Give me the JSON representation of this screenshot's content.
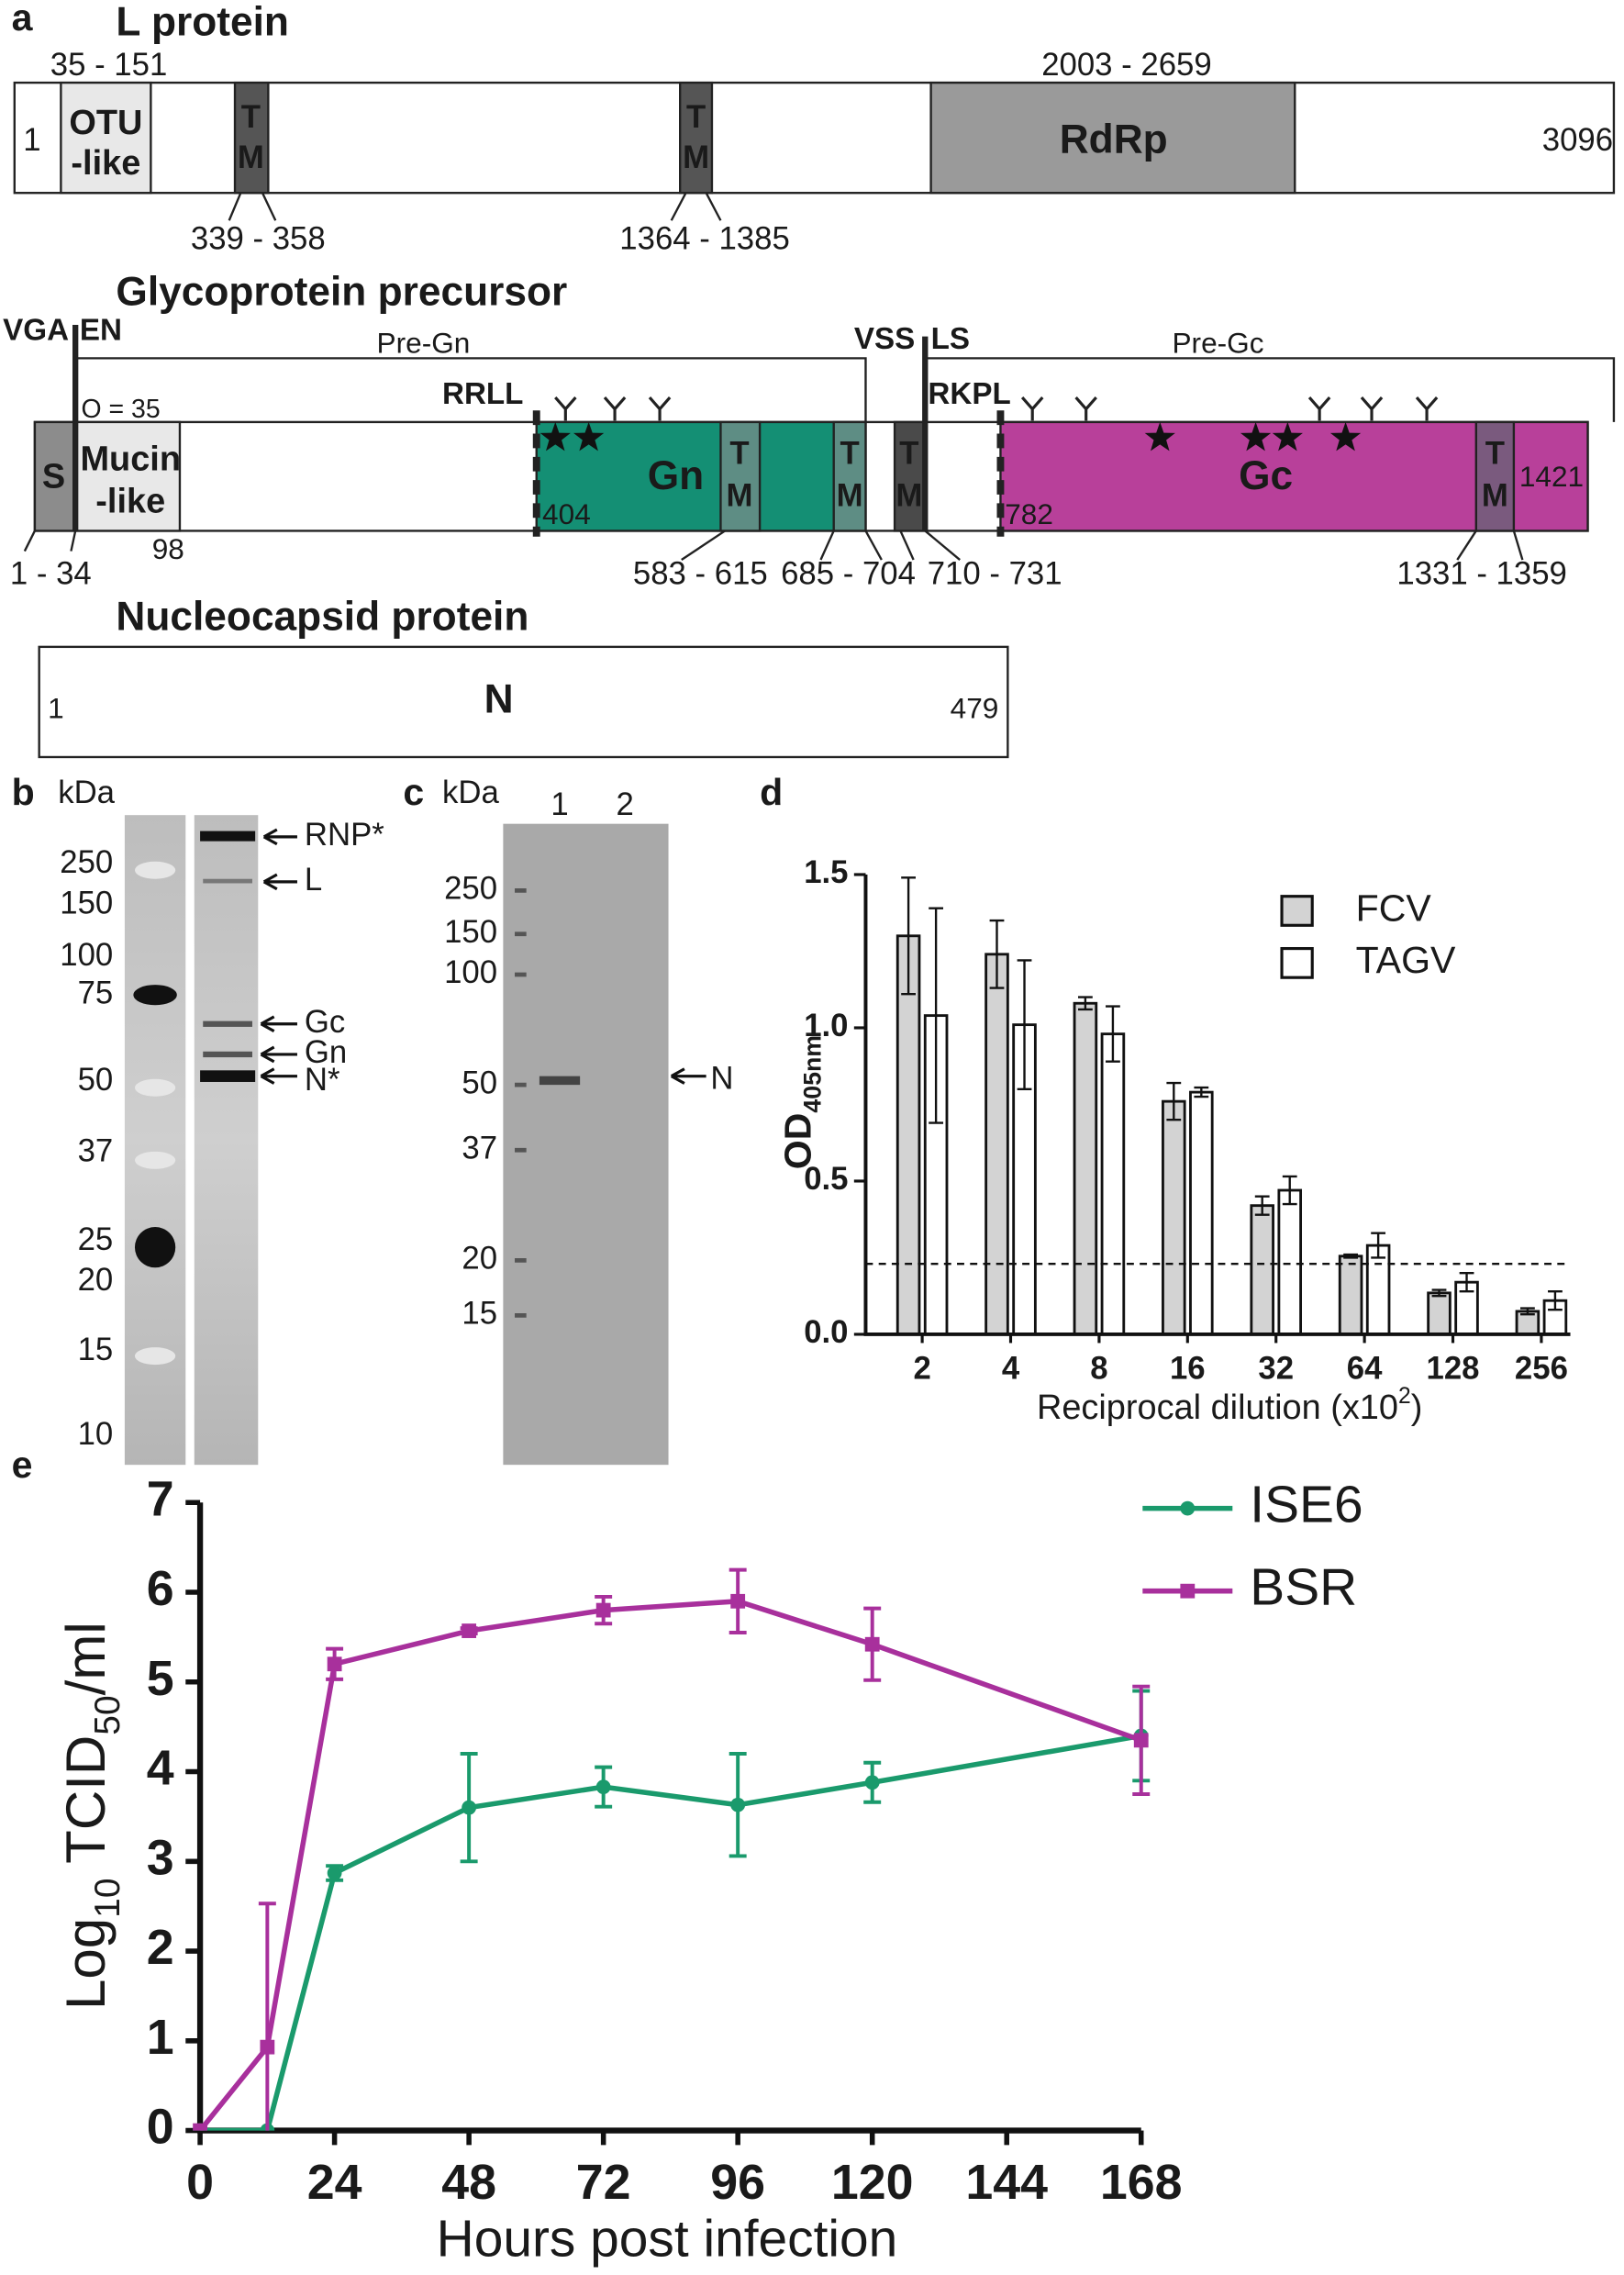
{
  "panel_a": {
    "label": "a",
    "l_protein": {
      "title": "L protein",
      "domain_range": "35 - 151",
      "otu": [
        "OTU",
        "-like"
      ],
      "tm1": [
        "T",
        "M"
      ],
      "tm2": [
        "T",
        "M"
      ],
      "rdrp_range": "2003 - 2659",
      "rdrp": "RdRp",
      "start": "1",
      "end": "3096",
      "tm1_range": "339 - 358",
      "tm2_range": "1364 - 1385"
    },
    "glycoprotein": {
      "title": "Glycoprotein precursor",
      "cleave1": [
        "VGA",
        "EN"
      ],
      "pre_gn": "Pre-Gn",
      "cleave2": [
        "VSS",
        "LS"
      ],
      "pre_gc": "Pre-Gc",
      "o_glyc": "O = 35",
      "rrll": "RRLL",
      "rkpl": "RKPL",
      "signal": "S",
      "mucin": [
        "Mucin",
        "-like"
      ],
      "mucin_end": "98",
      "gn": "Gn",
      "gn_start": "404",
      "tm1": [
        "T",
        "M"
      ],
      "tm2": [
        "T",
        "M"
      ],
      "tm3": [
        "T",
        "M"
      ],
      "gc_start": "782",
      "gc": "Gc",
      "tm4": [
        "T",
        "M"
      ],
      "end": "1421",
      "signal_range": "1 - 34",
      "tm1_range": "583 - 615",
      "tm2_range": "685 - 704",
      "tm3_range": "710 - 731",
      "tm4_range": "1331 - 1359"
    },
    "nucleocapsid": {
      "title": "Nucleocapsid protein",
      "start": "1",
      "name": "N",
      "end": "479"
    }
  },
  "panel_b": {
    "label": "b",
    "unit": "kDa",
    "markers": [
      "250",
      "150",
      "100",
      "75",
      "50",
      "37",
      "25",
      "20",
      "15",
      "10"
    ],
    "bands": [
      "RNP*",
      "L",
      "Gc",
      "Gn",
      "N*"
    ]
  },
  "panel_c": {
    "label": "c",
    "unit": "kDa",
    "lanes": [
      "1",
      "2"
    ],
    "markers": [
      "250",
      "150",
      "100",
      "50",
      "37",
      "20",
      "15"
    ],
    "band": "N"
  },
  "chart_data": [
    {
      "type": "bar",
      "panel_label": "d",
      "categories": [
        "2",
        "4",
        "8",
        "16",
        "32",
        "64",
        "128",
        "256"
      ],
      "series": [
        {
          "name": "FCV",
          "color": "#d3d3d3",
          "values": [
            1.3,
            1.24,
            1.08,
            0.76,
            0.42,
            0.255,
            0.135,
            0.075
          ],
          "errors": [
            0.19,
            0.11,
            0.02,
            0.06,
            0.03,
            0.005,
            0.01,
            0.01
          ]
        },
        {
          "name": "TAGV",
          "color": "#ffffff",
          "values": [
            1.04,
            1.01,
            0.98,
            0.79,
            0.47,
            0.29,
            0.17,
            0.11
          ],
          "errors": [
            0.35,
            0.21,
            0.09,
            0.015,
            0.045,
            0.04,
            0.03,
            0.03
          ]
        }
      ],
      "x_label": [
        "Reciprocal dilution (x10",
        "2",
        ")"
      ],
      "y_label": [
        "OD",
        "405nm"
      ],
      "ylim": [
        0,
        1.5
      ],
      "yticks": [
        {
          "value": 0,
          "label": "0.0"
        },
        0.5,
        {
          "value": 1,
          "label": "1.0"
        },
        1.5
      ],
      "threshold": 0.23,
      "legend": "upper right"
    },
    {
      "type": "line",
      "panel_label": "e",
      "x": [
        0,
        12,
        24,
        48,
        72,
        96,
        120,
        168
      ],
      "series": [
        {
          "name": "ISE6",
          "color": "#1a9a6c",
          "marker": "circle",
          "values": [
            0,
            0,
            2.87,
            3.6,
            3.83,
            3.63,
            3.88,
            4.4
          ],
          "errors": [
            0,
            0,
            0.08,
            0.6,
            0.22,
            0.57,
            0.22,
            0.5
          ]
        },
        {
          "name": "BSR",
          "color": "#a8309c",
          "marker": "square",
          "values": [
            0,
            0.93,
            5.2,
            5.57,
            5.8,
            5.9,
            5.42,
            4.35
          ],
          "errors": [
            0,
            1.6,
            0.17,
            0.03,
            0.15,
            0.35,
            0.4,
            0.6
          ]
        }
      ],
      "x_label": "Hours post infection",
      "y_label": [
        "Log",
        "10",
        " TCID",
        "50",
        "/ml"
      ],
      "xlim": [
        0,
        168
      ],
      "xticks": [
        0,
        24,
        48,
        72,
        96,
        120,
        144,
        168
      ],
      "ylim": [
        0,
        7
      ],
      "yticks": [
        0,
        1,
        2,
        3,
        4,
        5,
        6,
        7
      ],
      "legend": "upper right"
    }
  ]
}
